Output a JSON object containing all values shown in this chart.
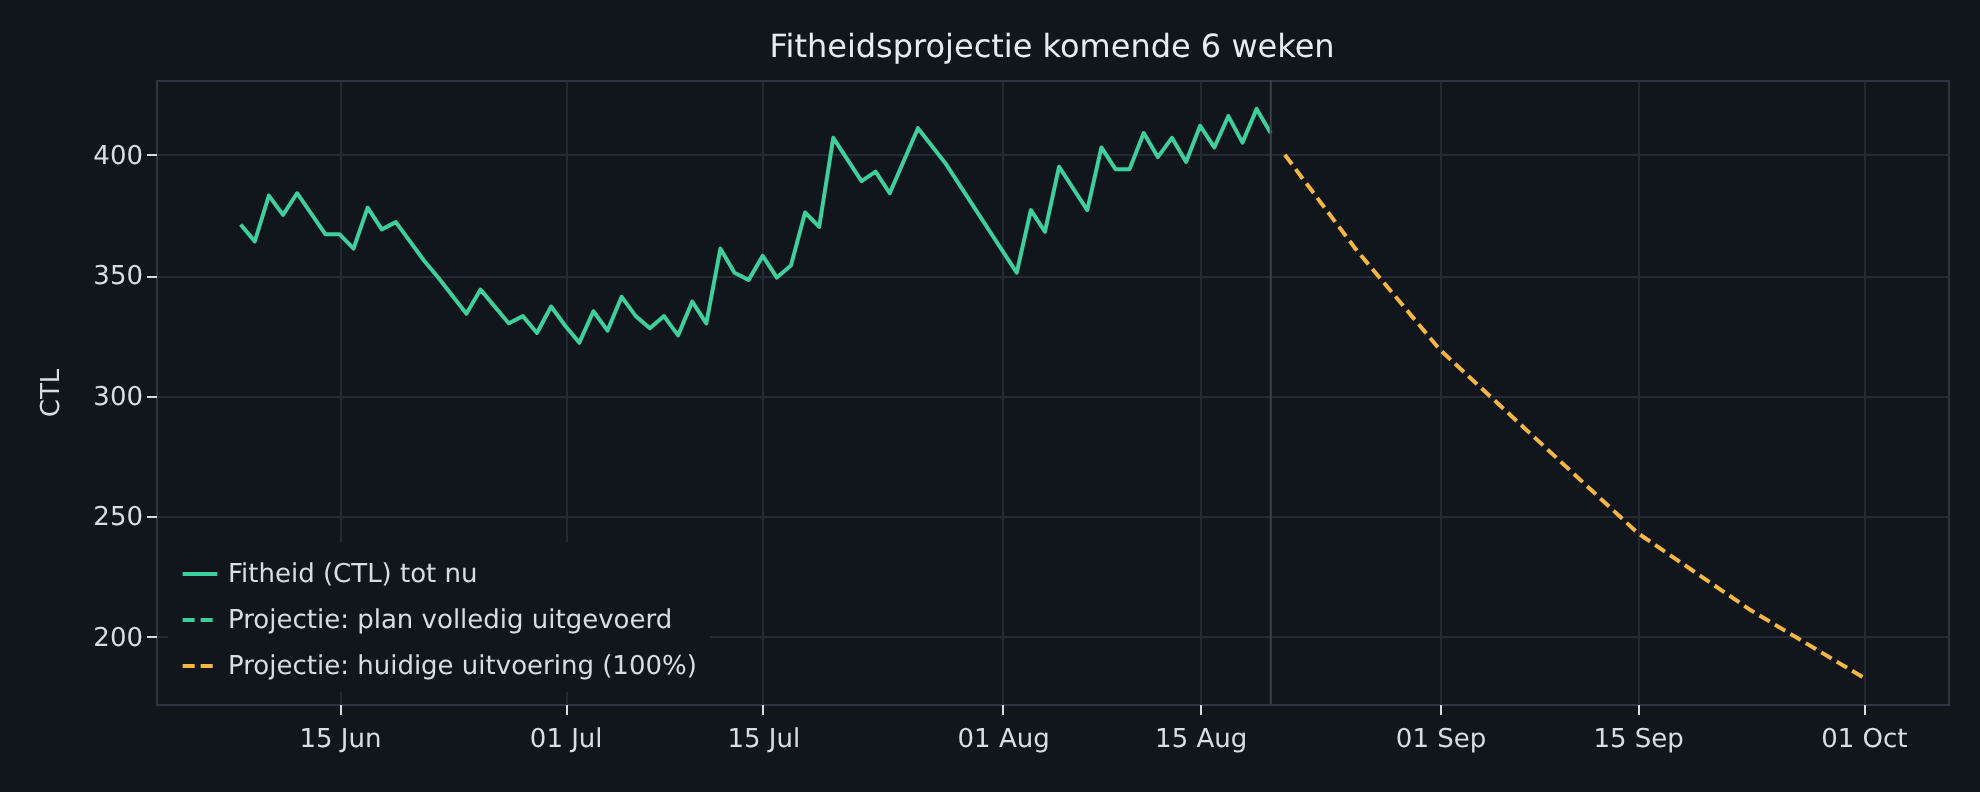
{
  "chart_data": {
    "type": "line",
    "title": "Fitheidsprojectie komende 6 weken",
    "ylabel": "CTL",
    "xlim": [
      "--06-02",
      "--10-07"
    ],
    "ylim": [
      172,
      431
    ],
    "xticks": [
      {
        "value": "--06-15",
        "label": "15 Jun"
      },
      {
        "value": "--07-01",
        "label": "01 Jul"
      },
      {
        "value": "--07-15",
        "label": "15 Jul"
      },
      {
        "value": "--08-01",
        "label": "01 Aug"
      },
      {
        "value": "--08-15",
        "label": "15 Aug"
      },
      {
        "value": "--09-01",
        "label": "01 Sep"
      },
      {
        "value": "--09-15",
        "label": "15 Sep"
      },
      {
        "value": "--10-01",
        "label": "01 Oct"
      }
    ],
    "yticks": [
      200,
      250,
      300,
      350,
      400
    ],
    "grid": true,
    "legend": "bottom left",
    "marker": "none",
    "ref_lines": [
      {
        "axis": "x",
        "value": "--08-20",
        "color": "#3a404c"
      }
    ],
    "series": [
      {
        "name": "Fitheid (CTL) tot nu",
        "color": "#3ecf9c",
        "line_style": "solid",
        "x": [
          "--06-08",
          "--06-09",
          "--06-10",
          "--06-11",
          "--06-12",
          "--06-14",
          "--06-15",
          "--06-16",
          "--06-17",
          "--06-18",
          "--06-19",
          "--06-21",
          "--06-22",
          "--06-24",
          "--06-25",
          "--06-27",
          "--06-28",
          "--06-29",
          "--06-30",
          "--07-01",
          "--07-02",
          "--07-03",
          "--07-04",
          "--07-05",
          "--07-06",
          "--07-07",
          "--07-08",
          "--07-09",
          "--07-10",
          "--07-11",
          "--07-12",
          "--07-13",
          "--07-14",
          "--07-15",
          "--07-16",
          "--07-17",
          "--07-18",
          "--07-19",
          "--07-20",
          "--07-22",
          "--07-23",
          "--07-24",
          "--07-26",
          "--07-28",
          "--08-02",
          "--08-03",
          "--08-04",
          "--08-05",
          "--08-07",
          "--08-08",
          "--08-09",
          "--08-10",
          "--08-11",
          "--08-12",
          "--08-13",
          "--08-14",
          "--08-15",
          "--08-16",
          "--08-17",
          "--08-18",
          "--08-19",
          "--08-20"
        ],
        "values": [
          371,
          364,
          383,
          375,
          384,
          367,
          367,
          361,
          378,
          369,
          372,
          356,
          349,
          334,
          344,
          330,
          333,
          326,
          337,
          329,
          322,
          335,
          327,
          341,
          333,
          328,
          333,
          325,
          339,
          330,
          361,
          351,
          348,
          358,
          349,
          354,
          376,
          370,
          407,
          389,
          393,
          384,
          411,
          396,
          351,
          377,
          368,
          395,
          377,
          403,
          394,
          394,
          409,
          399,
          407,
          397,
          412,
          403,
          416,
          405,
          419,
          409
        ]
      },
      {
        "name": "Projectie: plan volledig uitgevoerd",
        "color": "#3ecf9c",
        "line_style": "dashed"
      },
      {
        "name": "Projectie: huidige uitvoering (100%)",
        "color": "#f5b642",
        "line_style": "dashed",
        "x": [
          "--08-21",
          "--08-26",
          "--09-01",
          "--09-08",
          "--09-15",
          "--09-23",
          "--10-01"
        ],
        "values": [
          400,
          361,
          319,
          281,
          243,
          211,
          183
        ]
      }
    ]
  }
}
